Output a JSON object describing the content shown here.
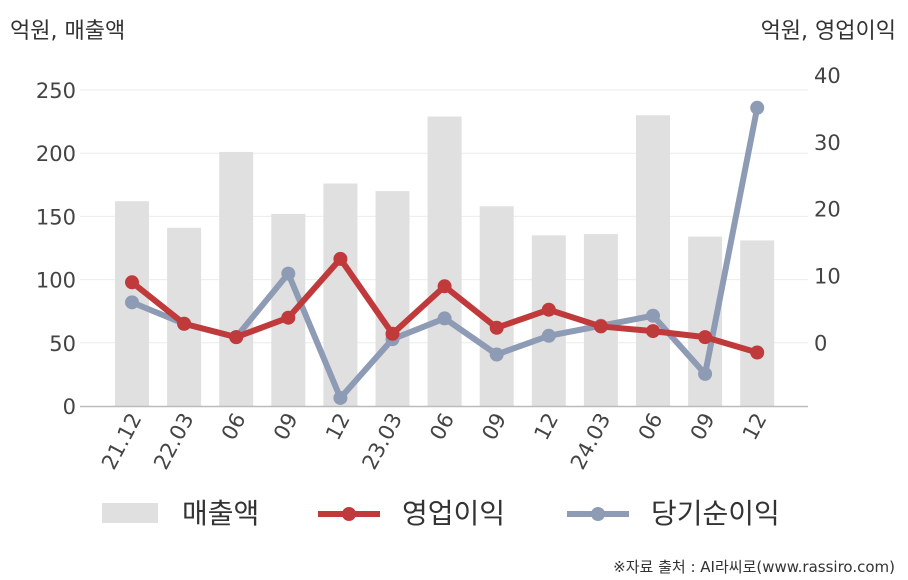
{
  "chart_data": {
    "type": "bar+line",
    "categories": [
      "21.12",
      "22.03",
      "06",
      "09",
      "12",
      "23.03",
      "06",
      "09",
      "12",
      "24.03",
      "06",
      "09",
      "12"
    ],
    "left_axis": {
      "label": "억원, 매출액",
      "ylim": [
        0,
        250
      ],
      "ticks": [
        0,
        50,
        100,
        150,
        200,
        250
      ]
    },
    "right_axis": {
      "label": "억원, 영업이익",
      "ylim": [
        -9.5,
        40
      ],
      "ticks": [
        0,
        10,
        20,
        30,
        40
      ]
    },
    "series": [
      {
        "name": "매출액",
        "type": "bar",
        "axis": "left",
        "color": "#e0e0e0",
        "values": [
          162,
          141,
          201,
          152,
          176,
          170,
          229,
          158,
          135,
          136,
          230,
          134,
          131
        ]
      },
      {
        "name": "영업이익",
        "type": "line",
        "axis": "right",
        "color": "#c0393b",
        "values": [
          9.0,
          2.8,
          0.8,
          3.7,
          12.5,
          1.3,
          8.4,
          2.2,
          4.9,
          2.4,
          1.7,
          0.8,
          -1.5
        ]
      },
      {
        "name": "당기순이익",
        "type": "line",
        "axis": "right",
        "color": "#8d9bb5",
        "values": [
          6.0,
          2.8,
          0.8,
          10.3,
          -8.3,
          0.5,
          3.6,
          -1.8,
          1.0,
          2.5,
          4.0,
          -4.7,
          35.1
        ]
      }
    ],
    "grid": true,
    "legend": "bottom"
  },
  "source_text": "※자료 출처 : AI라씨로(www.rassiro.com)"
}
